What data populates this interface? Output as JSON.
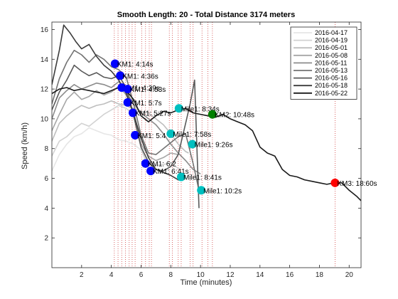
{
  "chart_data": {
    "type": "line",
    "title": "Smooth Length: 20 - Total Distance 3174 meters",
    "xlabel": "Time (minutes)",
    "ylabel": "Speed (km/h)",
    "xlim": [
      0,
      20.8
    ],
    "ylim": [
      0,
      16.5
    ],
    "xticks": [
      2,
      4,
      6,
      8,
      10,
      12,
      14,
      16,
      18,
      20
    ],
    "yticks": [
      2,
      4,
      6,
      8,
      10,
      12,
      14,
      16
    ],
    "grid": false,
    "legend_position": "top-right",
    "series": [
      {
        "name": "2016-04-17",
        "color": "#e6e6e6",
        "x": [
          0,
          0.5,
          1,
          1.5,
          2,
          2.5,
          3,
          3.5,
          4,
          4.5,
          5,
          5.5,
          6,
          6.5,
          7,
          7.3
        ],
        "y": [
          6.5,
          7.6,
          8.3,
          8.8,
          9.0,
          9.4,
          9.2,
          9.0,
          8.9,
          8.6,
          8.5,
          8.3,
          7.9,
          7.0,
          6.5,
          6.3
        ]
      },
      {
        "name": "2016-04-19",
        "color": "#d2d2d2",
        "x": [
          0,
          0.5,
          1,
          1.5,
          2,
          2.5,
          3,
          3.5,
          4,
          4.5,
          5,
          5.5,
          6,
          6.3,
          6.8,
          7.2,
          8.0,
          8.6
        ],
        "y": [
          7.5,
          8.5,
          8.8,
          9.3,
          9.7,
          9.5,
          9.9,
          10.3,
          10.6,
          10.9,
          10.7,
          10.3,
          8.0,
          7.2,
          6.8,
          6.9,
          7.0,
          6.6
        ]
      },
      {
        "name": "2016-05-01",
        "color": "#bebebe",
        "x": [
          0,
          0.5,
          1,
          1.5,
          2,
          2.5,
          3,
          3.5,
          4,
          4.5,
          5,
          5.5,
          6,
          6.5,
          7,
          7.5,
          8,
          8.5,
          9,
          9.2
        ],
        "y": [
          8.5,
          9.7,
          10.2,
          10.6,
          10.9,
          10.7,
          10.9,
          11.0,
          11.2,
          11.0,
          10.9,
          10.7,
          10.5,
          10.4,
          10.0,
          9.6,
          9.0,
          8.3,
          7.8,
          7.7
        ]
      },
      {
        "name": "2016-05-08",
        "color": "#a6a6a6",
        "x": [
          0,
          0.5,
          1,
          1.5,
          2,
          2.5,
          3,
          3.5,
          4,
          4.5,
          5,
          5.5,
          6,
          6.5,
          7,
          7.5,
          8,
          8.5
        ],
        "y": [
          9.2,
          10.3,
          11.3,
          11.8,
          11.3,
          11.5,
          11.9,
          11.6,
          11.8,
          12.2,
          11.6,
          10.5,
          8.3,
          7.5,
          7.2,
          7.4,
          7.7,
          7.6
        ]
      },
      {
        "name": "2016-05-11",
        "color": "#8c8c8c",
        "x": [
          0,
          0.5,
          1,
          1.5,
          2,
          2.5,
          3,
          3.5,
          4,
          4.5,
          5,
          5.5,
          6,
          6.5,
          7,
          7.5,
          8,
          8.5,
          9,
          9.5,
          10
        ],
        "y": [
          10.0,
          11.4,
          11.9,
          12.3,
          12.0,
          12.2,
          12.4,
          12.3,
          12.1,
          12.5,
          11.8,
          11.0,
          10.4,
          10.0,
          9.6,
          9.0,
          8.3,
          7.7,
          7.2,
          6.6,
          6.3
        ]
      },
      {
        "name": "2016-05-13",
        "color": "#737373",
        "x": [
          0,
          0.5,
          1,
          1.5,
          2,
          2.5,
          3,
          3.5,
          4,
          4.5,
          5,
          5.5,
          6,
          6.5,
          7,
          7.5,
          8,
          8.5,
          9,
          9.5,
          9.9
        ],
        "y": [
          11.0,
          12.7,
          13.8,
          14.6,
          14.3,
          13.8,
          14.3,
          14.0,
          13.5,
          13.3,
          12.8,
          11.0,
          8.9,
          7.7,
          7.6,
          8.0,
          8.4,
          8.8,
          9.0,
          7.0,
          5.2
        ]
      },
      {
        "name": "2016-05-16",
        "color": "#595959",
        "x": [
          0,
          0.5,
          1,
          1.5,
          2,
          2.5,
          3,
          3.5,
          4,
          4.5,
          5,
          5.5,
          6,
          6.5,
          7,
          7.5,
          8,
          8.5,
          9,
          9.3,
          9.6,
          9.9
        ],
        "y": [
          10.6,
          11.8,
          12.6,
          13.6,
          13.2,
          12.9,
          13.1,
          12.8,
          12.7,
          12.9,
          12.1,
          10.2,
          8.1,
          7.1,
          6.6,
          6.5,
          6.8,
          7.6,
          9.7,
          11.0,
          12.6,
          4.0
        ]
      },
      {
        "name": "2016-05-18",
        "color": "#3c3c3c",
        "x": [
          0,
          0.5,
          0.8,
          1.2,
          1.6,
          2.0,
          2.5,
          3.0,
          3.5,
          4.0,
          4.5,
          5.0,
          5.5,
          6.0,
          6.5,
          7.0,
          7.5,
          8.0,
          8.5,
          8.8,
          9.0
        ],
        "y": [
          12.3,
          14.6,
          16.3,
          15.8,
          15.2,
          14.7,
          15.0,
          14.2,
          13.6,
          13.2,
          12.6,
          11.7,
          10.3,
          8.7,
          7.4,
          6.6,
          6.4,
          6.2,
          5.9,
          6.0,
          6.2
        ]
      },
      {
        "name": "2016-05-22",
        "color": "#1a1a1a",
        "x": [
          0,
          0.5,
          1,
          1.5,
          2,
          2.5,
          3,
          3.5,
          4,
          4.5,
          5,
          5.5,
          6,
          6.5,
          7,
          7.5,
          8,
          8.5,
          9,
          9.5,
          10,
          10.5,
          11,
          11.5,
          12,
          12.5,
          13,
          13.5,
          14,
          14.5,
          15,
          15.5,
          16,
          16.5,
          17,
          17.5,
          18,
          18.5,
          19,
          19.5,
          20,
          20.5,
          20.8
        ],
        "y": [
          11.7,
          12.0,
          12.1,
          11.9,
          12.0,
          11.9,
          11.8,
          11.7,
          11.9,
          12.1,
          11.9,
          11.3,
          10.2,
          9.8,
          10.2,
          10.5,
          10.4,
          10.6,
          10.7,
          10.4,
          10.3,
          10.2,
          10.1,
          10.3,
          10.0,
          9.8,
          9.6,
          9.2,
          8.1,
          7.7,
          7.5,
          6.6,
          6.2,
          6.1,
          5.9,
          5.8,
          5.7,
          5.6,
          5.7,
          5.7,
          5.2,
          4.8,
          4.5
        ]
      }
    ],
    "event_lines_x": [
      4.2,
      4.45,
      4.7,
      4.95,
      5.2,
      5.4,
      5.6,
      6.05,
      6.3,
      6.55,
      6.7,
      7.9,
      8.1,
      8.5,
      8.7,
      9.3,
      9.5,
      10.1,
      10.5,
      10.8,
      19.05
    ],
    "annotations": [
      {
        "label": "KM1: 4:14s",
        "x": 4.25,
        "y": 13.7,
        "color": "#0000ff"
      },
      {
        "label": "KM1: 4:36s",
        "x": 4.6,
        "y": 12.9,
        "color": "#0000ff"
      },
      {
        "label": "KM1: 4:39s",
        "x": 4.7,
        "y": 12.1,
        "color": "#0000ff"
      },
      {
        "label": "KM1: 4:53s",
        "x": 5.1,
        "y": 12.0,
        "color": "#0000ff"
      },
      {
        "label": "KM1: 5:7s",
        "x": 5.1,
        "y": 11.1,
        "color": "#0000ff"
      },
      {
        "label": "KM1: 5:27s",
        "x": 5.45,
        "y": 10.4,
        "color": "#0000ff"
      },
      {
        "label": "KM1: 5:4",
        "x": 5.6,
        "y": 8.9,
        "color": "#0000ff"
      },
      {
        "label": "KM1: 6:2",
        "x": 6.3,
        "y": 7.0,
        "color": "#0000ff"
      },
      {
        "label": "KM1: 6:41s",
        "x": 6.65,
        "y": 6.5,
        "color": "#0000ff"
      },
      {
        "label": "Mile1: 7:58s",
        "x": 8.0,
        "y": 9.0,
        "color": "#00bfbf"
      },
      {
        "label": "Mile1: 8:34s",
        "x": 8.55,
        "y": 10.7,
        "color": "#00bfbf"
      },
      {
        "label": "Mile1: 8:41s",
        "x": 8.7,
        "y": 6.1,
        "color": "#00bfbf"
      },
      {
        "label": "Mile1: 9:26s",
        "x": 9.45,
        "y": 8.3,
        "color": "#00bfbf"
      },
      {
        "label": "Mile1: 10:2s",
        "x": 10.05,
        "y": 5.2,
        "color": "#00bfbf"
      },
      {
        "label": "KM2: 10:48s",
        "x": 10.8,
        "y": 10.3,
        "color": "#008000"
      },
      {
        "label": "KM3: 18:60s",
        "x": 19.05,
        "y": 5.7,
        "color": "#ff0000"
      }
    ]
  }
}
